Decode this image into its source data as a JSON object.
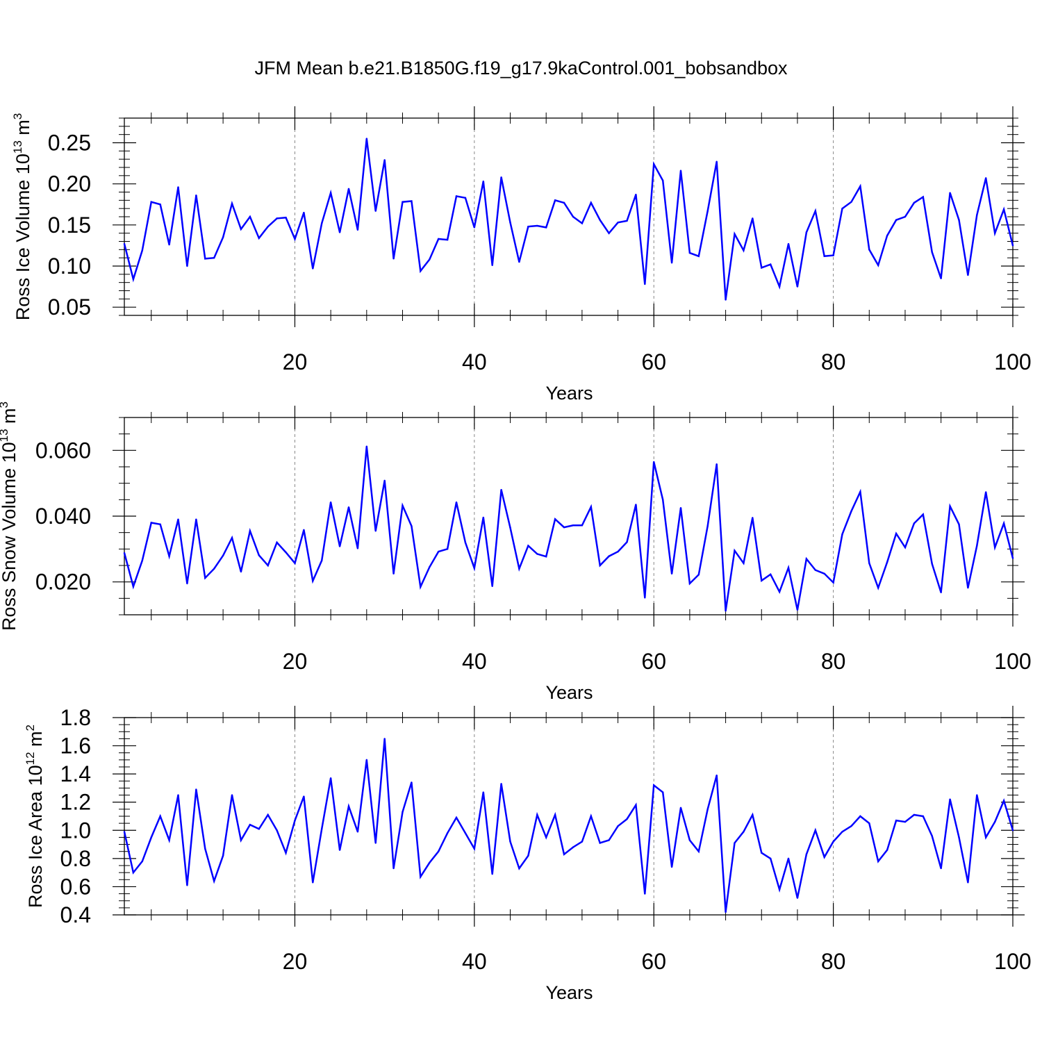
{
  "figure": {
    "title": "JFM Mean b.e21.B1850G.f19_g17.9kaControl.001_bobsandbox",
    "line_color": "#0000ff"
  },
  "chart_data": [
    {
      "type": "line",
      "title": "JFM Mean b.e21.B1850G.f19_g17.9kaControl.001_bobsandbox",
      "xlabel": "Years",
      "ylabel_main": "Ross Ice Volume 10",
      "ylabel_exp": "13",
      "ylabel_unit": " m",
      "ylabel_unit_exp": "3",
      "xlim": [
        1,
        100
      ],
      "ylim": [
        0.04,
        0.28
      ],
      "xticks": [
        20,
        40,
        60,
        80,
        100
      ],
      "xtick_labels": [
        "20",
        "40",
        "60",
        "80",
        "100"
      ],
      "yticks": [
        0.05,
        0.1,
        0.15,
        0.2,
        0.25
      ],
      "ytick_labels": [
        "0.05",
        "0.10",
        "0.15",
        "0.20",
        "0.25"
      ],
      "y_minor_step": 0.01,
      "x_minor_step": 4,
      "vgrid": [
        20,
        40,
        60,
        80
      ],
      "series": [
        {
          "name": "Ross Ice Volume",
          "x_start": 1,
          "values": [
            0.127,
            0.084,
            0.119,
            0.178,
            0.175,
            0.126,
            0.196,
            0.1,
            0.186,
            0.109,
            0.11,
            0.135,
            0.176,
            0.145,
            0.16,
            0.134,
            0.148,
            0.158,
            0.159,
            0.133,
            0.165,
            0.097,
            0.152,
            0.189,
            0.141,
            0.194,
            0.144,
            0.255,
            0.167,
            0.229,
            0.109,
            0.178,
            0.179,
            0.094,
            0.108,
            0.133,
            0.132,
            0.185,
            0.183,
            0.147,
            0.203,
            0.101,
            0.208,
            0.153,
            0.105,
            0.148,
            0.149,
            0.147,
            0.18,
            0.177,
            0.16,
            0.152,
            0.177,
            0.156,
            0.14,
            0.153,
            0.155,
            0.187,
            0.078,
            0.224,
            0.204,
            0.104,
            0.216,
            0.116,
            0.112,
            0.167,
            0.227,
            0.059,
            0.139,
            0.119,
            0.158,
            0.098,
            0.102,
            0.075,
            0.127,
            0.075,
            0.141,
            0.167,
            0.112,
            0.113,
            0.17,
            0.178,
            0.197,
            0.12,
            0.101,
            0.137,
            0.156,
            0.16,
            0.177,
            0.184,
            0.117,
            0.085,
            0.189,
            0.156,
            0.089,
            0.162,
            0.207,
            0.14,
            0.169,
            0.125
          ]
        }
      ]
    },
    {
      "type": "line",
      "xlabel": "Years",
      "ylabel_main": "Ross Snow Volume 10",
      "ylabel_exp": "13",
      "ylabel_unit": " m",
      "ylabel_unit_exp": "3",
      "xlim": [
        1,
        100
      ],
      "ylim": [
        0.01,
        0.07
      ],
      "xticks": [
        20,
        40,
        60,
        80,
        100
      ],
      "xtick_labels": [
        "20",
        "40",
        "60",
        "80",
        "100"
      ],
      "yticks": [
        0.02,
        0.04,
        0.06
      ],
      "ytick_labels": [
        "0.020",
        "0.040",
        "0.060"
      ],
      "y_minor_step": 0.005,
      "x_minor_step": 4,
      "vgrid": [
        20,
        40,
        60,
        80
      ],
      "series": [
        {
          "name": "Ross Snow Volume",
          "x_start": 1,
          "values": [
            0.0288,
            0.0186,
            0.0265,
            0.038,
            0.0375,
            0.0278,
            0.039,
            0.0195,
            0.039,
            0.0212,
            0.024,
            0.028,
            0.0334,
            0.0231,
            0.0355,
            0.0281,
            0.025,
            0.032,
            0.029,
            0.0257,
            0.0358,
            0.0203,
            0.0265,
            0.0442,
            0.0308,
            0.0427,
            0.0302,
            0.0612,
            0.0355,
            0.0508,
            0.0225,
            0.0432,
            0.037,
            0.0185,
            0.0245,
            0.0292,
            0.03,
            0.0442,
            0.032,
            0.0242,
            0.0396,
            0.0187,
            0.048,
            0.0365,
            0.024,
            0.031,
            0.0285,
            0.0277,
            0.0391,
            0.0366,
            0.0372,
            0.0372,
            0.0428,
            0.025,
            0.0278,
            0.0292,
            0.0321,
            0.0435,
            0.0152,
            0.0565,
            0.045,
            0.0225,
            0.0425,
            0.0195,
            0.0222,
            0.037,
            0.0558,
            0.0112,
            0.0295,
            0.0257,
            0.0395,
            0.0204,
            0.0223,
            0.017,
            0.0243,
            0.0115,
            0.027,
            0.0236,
            0.0225,
            0.0198,
            0.0345,
            0.0415,
            0.0474,
            0.0257,
            0.0182,
            0.026,
            0.0347,
            0.0305,
            0.0378,
            0.0405,
            0.0255,
            0.0168,
            0.043,
            0.0375,
            0.0182,
            0.031,
            0.0473,
            0.0305,
            0.0378,
            0.0272
          ]
        }
      ]
    },
    {
      "type": "line",
      "xlabel": "Years",
      "ylabel_main": "Ross Ice Area 10",
      "ylabel_exp": "12",
      "ylabel_unit": " m",
      "ylabel_unit_exp": "2",
      "xlim": [
        1,
        100
      ],
      "ylim": [
        0.4,
        1.8
      ],
      "xticks": [
        20,
        40,
        60,
        80,
        100
      ],
      "xtick_labels": [
        "20",
        "40",
        "60",
        "80",
        "100"
      ],
      "yticks": [
        0.4,
        0.6,
        0.8,
        1.0,
        1.2,
        1.4,
        1.6,
        1.8
      ],
      "ytick_labels": [
        "0.4",
        "0.6",
        "0.8",
        "1.0",
        "1.2",
        "1.4",
        "1.6",
        "1.8"
      ],
      "y_minor_step": 0.05,
      "x_minor_step": 4,
      "vgrid": [
        20,
        40,
        60,
        80
      ],
      "series": [
        {
          "name": "Ross Ice Area",
          "x_start": 1,
          "values": [
            0.99,
            0.7,
            0.78,
            0.95,
            1.1,
            0.93,
            1.25,
            0.61,
            1.29,
            0.87,
            0.64,
            0.82,
            1.25,
            0.93,
            1.04,
            1.01,
            1.11,
            1.0,
            0.84,
            1.07,
            1.24,
            0.63,
            1.01,
            1.37,
            0.86,
            1.17,
            0.99,
            1.5,
            0.91,
            1.65,
            0.73,
            1.13,
            1.34,
            0.67,
            0.77,
            0.85,
            0.98,
            1.09,
            0.98,
            0.87,
            1.27,
            0.69,
            1.33,
            0.92,
            0.73,
            0.82,
            1.11,
            0.95,
            1.11,
            0.83,
            0.88,
            0.92,
            1.1,
            0.91,
            0.93,
            1.03,
            1.08,
            1.18,
            0.55,
            1.32,
            1.27,
            0.74,
            1.16,
            0.93,
            0.85,
            1.15,
            1.39,
            0.42,
            0.91,
            0.99,
            1.11,
            0.84,
            0.8,
            0.58,
            0.8,
            0.52,
            0.83,
            1.0,
            0.81,
            0.92,
            0.99,
            1.03,
            1.1,
            1.05,
            0.78,
            0.86,
            1.07,
            1.06,
            1.11,
            1.1,
            0.96,
            0.73,
            1.22,
            0.95,
            0.63,
            1.25,
            0.95,
            1.06,
            1.21,
            1.0
          ]
        }
      ]
    }
  ]
}
